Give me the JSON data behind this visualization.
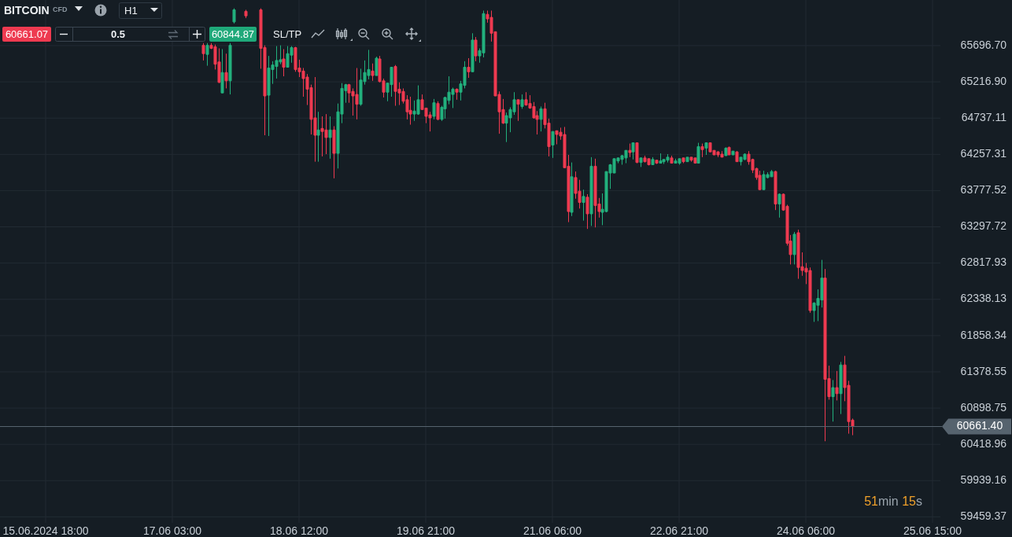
{
  "chart_data": {
    "type": "candlestick",
    "title": "BITCOIN",
    "subtitle": "CFD",
    "annotations": [
      "H1",
      "60661.07",
      "0.5",
      "60844.87",
      "SL/TP",
      "51min 15s"
    ],
    "categories": [
      "15.06.2024 18:00",
      null,
      null,
      null,
      null,
      null,
      null,
      null,
      null,
      null,
      null,
      null,
      null,
      null,
      null,
      null,
      null,
      null,
      null,
      null,
      null,
      null,
      null,
      null,
      null,
      null,
      null,
      null,
      null,
      null,
      null,
      null,
      null,
      "17.06 03:00",
      null,
      null,
      null,
      null,
      null,
      null,
      null,
      null,
      null,
      null,
      null,
      null,
      null,
      null,
      null,
      null,
      null,
      null,
      null,
      null,
      null,
      null,
      null,
      null,
      null,
      null,
      null,
      null,
      null,
      null,
      null,
      null,
      "18.06 12:00",
      null,
      null,
      null,
      null,
      null,
      null,
      null,
      null,
      null,
      null,
      null,
      null,
      null,
      null,
      null,
      null,
      null,
      null,
      null,
      null,
      null,
      null,
      null,
      null,
      null,
      null,
      null,
      null,
      null,
      null,
      null,
      null,
      "19.06 21:00",
      null,
      null,
      null,
      null,
      null,
      null,
      null,
      null,
      null,
      null,
      null,
      null,
      null,
      null,
      null,
      null,
      null,
      null,
      null,
      null,
      null,
      null,
      null,
      null,
      null,
      null,
      null,
      null,
      null,
      null,
      null,
      null,
      "21.06 06:00",
      null,
      null,
      null,
      null,
      null,
      null,
      null,
      null,
      null,
      null,
      null,
      null,
      null,
      null,
      null,
      null,
      null,
      null,
      null,
      null,
      null,
      null,
      null,
      null,
      null,
      null,
      null,
      null,
      null,
      null,
      null,
      null,
      "22.06 21:00",
      null,
      null,
      null,
      null,
      null,
      null,
      null,
      null,
      null,
      null,
      null,
      null,
      null,
      null,
      null,
      null,
      null,
      null,
      null,
      null,
      null,
      null,
      null,
      null,
      null,
      null,
      null,
      null,
      null,
      null,
      null,
      null,
      "24.06 06:00",
      null,
      null,
      null,
      null,
      null,
      null,
      null,
      null,
      null,
      null,
      null,
      null,
      null,
      null,
      null,
      null,
      null,
      null,
      null,
      null,
      null,
      null,
      null,
      null,
      null,
      null,
      null,
      null,
      null,
      null,
      null,
      null,
      "25.06 15:00"
    ],
    "ohlc": [
      null,
      null,
      null,
      null,
      null,
      null,
      null,
      null,
      null,
      null,
      null,
      null,
      null,
      null,
      null,
      null,
      null,
      null,
      null,
      null,
      null,
      null,
      null,
      null,
      null,
      null,
      null,
      null,
      null,
      null,
      null,
      null,
      null,
      null,
      null,
      null,
      null,
      null,
      null,
      null,
      null,
      [
        65700,
        65730,
        65500,
        65590
      ],
      [
        65580,
        65730,
        65430,
        65700
      ],
      [
        65700,
        65730,
        65650,
        65660
      ],
      [
        65680,
        65710,
        65380,
        65450
      ],
      [
        65480,
        65660,
        65200,
        65210
      ],
      [
        65070,
        65650,
        65070,
        65340
      ],
      [
        65340,
        65590,
        65130,
        65230
      ],
      [
        65230,
        65730,
        65050,
        65700
      ],
      [
        66010,
        66190,
        65990,
        66170
      ],
      null,
      null,
      [
        66150,
        66170,
        66060,
        66090
      ],
      null,
      null,
      null,
      [
        66170,
        66190,
        65390,
        65660
      ],
      [
        65670,
        65700,
        64510,
        65030
      ],
      [
        65040,
        65560,
        64500,
        65400
      ],
      [
        65380,
        65490,
        65190,
        65440
      ],
      [
        65420,
        65690,
        65260,
        65500
      ],
      [
        65480,
        65700,
        65450,
        65510
      ],
      [
        65520,
        65650,
        65290,
        65410
      ],
      [
        65410,
        65690,
        65410,
        65590
      ],
      [
        65570,
        65690,
        65470,
        65670
      ],
      [
        65670,
        65680,
        65350,
        65380
      ],
      [
        65400,
        65510,
        65280,
        65350
      ],
      [
        65360,
        65400,
        65020,
        65260
      ],
      [
        65280,
        65320,
        64910,
        65120
      ],
      [
        65140,
        65180,
        64520,
        64720
      ],
      [
        64740,
        65280,
        64160,
        64510
      ],
      [
        64510,
        64820,
        64160,
        64580
      ],
      [
        64600,
        64760,
        64230,
        64560
      ],
      [
        64580,
        64790,
        64260,
        64480
      ],
      [
        64480,
        64760,
        64200,
        64580
      ],
      [
        64580,
        64630,
        63940,
        64270
      ],
      [
        64270,
        64930,
        64070,
        64820
      ],
      [
        64790,
        65200,
        64670,
        65130
      ],
      [
        65100,
        65190,
        64940,
        65180
      ],
      [
        65180,
        65190,
        64940,
        65070
      ],
      [
        65090,
        65130,
        64770,
        65030
      ],
      [
        65050,
        65400,
        64720,
        64920
      ],
      [
        64920,
        65390,
        64900,
        65240
      ],
      [
        65220,
        65500,
        65180,
        65340
      ],
      [
        65300,
        65640,
        65250,
        65380
      ],
      [
        65360,
        65460,
        65230,
        65300
      ],
      [
        65300,
        65550,
        65300,
        65530
      ],
      [
        65520,
        65560,
        65210,
        65220
      ],
      [
        65230,
        65260,
        65010,
        65080
      ],
      [
        65080,
        65200,
        64960,
        65200
      ],
      [
        65180,
        65410,
        65020,
        65410
      ],
      [
        65420,
        65440,
        64900,
        65090
      ],
      [
        65120,
        65210,
        64910,
        65070
      ],
      [
        65090,
        65130,
        64930,
        64960
      ],
      [
        64980,
        65040,
        64720,
        64820
      ],
      [
        64840,
        65020,
        64650,
        64790
      ],
      [
        64790,
        64970,
        64700,
        64830
      ],
      [
        64790,
        65170,
        64780,
        64980
      ],
      [
        64980,
        65050,
        64850,
        64850
      ],
      [
        64870,
        64870,
        64670,
        64760
      ],
      [
        64780,
        64820,
        64560,
        64740
      ],
      [
        64760,
        64990,
        64720,
        64940
      ],
      [
        64930,
        64960,
        64710,
        64720
      ],
      [
        64720,
        64900,
        64700,
        64880
      ],
      [
        64860,
        65020,
        64730,
        65010
      ],
      [
        64970,
        65290,
        64920,
        65080
      ],
      [
        65050,
        65140,
        64870,
        65120
      ],
      [
        65120,
        65130,
        64980,
        65080
      ],
      [
        65080,
        65230,
        64970,
        65190
      ],
      [
        65170,
        65490,
        65130,
        65410
      ],
      [
        65410,
        65530,
        65270,
        65350
      ],
      [
        65350,
        65860,
        65350,
        65770
      ],
      [
        65770,
        65810,
        65490,
        65560
      ],
      [
        65560,
        65660,
        65470,
        65630
      ],
      [
        65600,
        66160,
        65540,
        66120
      ],
      [
        66110,
        66160,
        66000,
        66050
      ],
      [
        66070,
        66160,
        65750,
        65860
      ],
      [
        65880,
        65880,
        65030,
        65030
      ],
      [
        65050,
        65090,
        64530,
        64820
      ],
      [
        64850,
        64990,
        64660,
        64670
      ],
      [
        64670,
        64810,
        64420,
        64770
      ],
      [
        64740,
        64880,
        64550,
        64850
      ],
      [
        64820,
        65080,
        64780,
        64980
      ],
      [
        64980,
        64980,
        64700,
        64920
      ],
      [
        64890,
        65050,
        64860,
        64980
      ],
      [
        64980,
        65080,
        64900,
        64910
      ],
      [
        64930,
        65040,
        64860,
        64870
      ],
      [
        64890,
        64950,
        64730,
        64740
      ],
      [
        64770,
        64830,
        64520,
        64720
      ],
      [
        64720,
        64890,
        64560,
        64860
      ],
      [
        64860,
        64940,
        64600,
        64650
      ],
      [
        64670,
        64730,
        64230,
        64360
      ],
      [
        64380,
        64560,
        64210,
        64560
      ],
      [
        64570,
        64570,
        64390,
        64520
      ],
      [
        64550,
        64610,
        64450,
        64500
      ],
      [
        64520,
        64620,
        64080,
        64080
      ],
      [
        64100,
        64250,
        63360,
        63500
      ],
      [
        63490,
        64150,
        63440,
        63960
      ],
      [
        63950,
        64030,
        63670,
        63740
      ],
      [
        63770,
        63920,
        63540,
        63620
      ],
      [
        63620,
        63790,
        63380,
        63700
      ],
      [
        63690,
        63730,
        63270,
        63470
      ],
      [
        63470,
        64220,
        63310,
        64100
      ],
      [
        64100,
        64200,
        63290,
        63580
      ],
      [
        63600,
        63680,
        63420,
        63500
      ],
      [
        63490,
        63740,
        63320,
        63530
      ],
      [
        63500,
        64030,
        63490,
        64030
      ],
      [
        64010,
        64130,
        63800,
        64120
      ],
      [
        64010,
        64200,
        64010,
        64200
      ],
      [
        64170,
        64210,
        64140,
        64210
      ],
      [
        64190,
        64250,
        64120,
        64240
      ],
      [
        64210,
        64310,
        64140,
        64310
      ],
      [
        64310,
        64400,
        64220,
        64280
      ],
      [
        64290,
        64410,
        64190,
        64410
      ],
      [
        64410,
        64410,
        64140,
        64150
      ],
      [
        64150,
        64210,
        64090,
        64210
      ],
      [
        64210,
        64240,
        64150,
        64160
      ],
      [
        64200,
        64200,
        64110,
        64120
      ],
      [
        64120,
        64220,
        64120,
        64190
      ],
      [
        64180,
        64180,
        64130,
        64140
      ],
      [
        64140,
        64270,
        64140,
        64170
      ],
      [
        64160,
        64190,
        64130,
        64190
      ],
      [
        64180,
        64260,
        64150,
        64220
      ],
      [
        64210,
        64240,
        64140,
        64140
      ],
      [
        64140,
        64200,
        64140,
        64170
      ],
      [
        64140,
        64200,
        64120,
        64200
      ],
      [
        64210,
        64210,
        64140,
        64160
      ],
      [
        64160,
        64220,
        64160,
        64220
      ],
      [
        64220,
        64220,
        64160,
        64180
      ],
      [
        64210,
        64210,
        64140,
        64140
      ],
      [
        64140,
        64410,
        64140,
        64360
      ],
      [
        64360,
        64400,
        64220,
        64320
      ],
      [
        64340,
        64410,
        64250,
        64410
      ],
      [
        64410,
        64410,
        64290,
        64290
      ],
      [
        64310,
        64310,
        64250,
        64250
      ],
      [
        64290,
        64300,
        64220,
        64250
      ],
      [
        64260,
        64300,
        64220,
        64220
      ],
      [
        64240,
        64350,
        64240,
        64340
      ],
      [
        64350,
        64360,
        64250,
        64250
      ],
      [
        64250,
        64300,
        64250,
        64300
      ],
      [
        64290,
        64300,
        64160,
        64160
      ],
      [
        64160,
        64220,
        64110,
        64220
      ],
      [
        64190,
        64270,
        64180,
        64260
      ],
      [
        64260,
        64300,
        64120,
        64160
      ],
      [
        64190,
        64200,
        64010,
        64050
      ],
      [
        64070,
        64080,
        63920,
        63950
      ],
      [
        63980,
        64040,
        63790,
        63790
      ],
      [
        63790,
        64040,
        63790,
        63990
      ],
      [
        63950,
        64020,
        63940,
        63990
      ],
      [
        63960,
        64050,
        63960,
        64030
      ],
      [
        64030,
        64040,
        63520,
        63600
      ],
      [
        63600,
        63740,
        63420,
        63730
      ],
      [
        63730,
        63740,
        63510,
        63520
      ],
      [
        63570,
        63590,
        63050,
        63080
      ],
      [
        63110,
        63190,
        62800,
        62930
      ],
      [
        62930,
        63230,
        62800,
        63200
      ],
      [
        63220,
        63260,
        62610,
        62760
      ],
      [
        62770,
        62960,
        62650,
        62720
      ],
      [
        62750,
        62820,
        62540,
        62700
      ],
      [
        62720,
        62760,
        62160,
        62190
      ],
      [
        62190,
        62300,
        62040,
        62290
      ],
      [
        62260,
        62470,
        62050,
        62350
      ],
      [
        62330,
        62860,
        62230,
        62620
      ],
      [
        62620,
        62740,
        60460,
        61280
      ],
      [
        61290,
        61460,
        61010,
        61050
      ],
      [
        61050,
        61270,
        60720,
        61170
      ],
      [
        61170,
        61390,
        61000,
        61090
      ],
      [
        61090,
        61510,
        60820,
        61470
      ],
      [
        61470,
        61590,
        60990,
        61170
      ],
      [
        61200,
        61260,
        60560,
        60720
      ],
      [
        60740,
        60760,
        60540,
        60660
      ],
      null,
      null,
      null,
      null,
      null,
      null,
      null,
      null,
      null,
      null,
      null,
      null,
      null,
      null,
      null,
      null,
      null,
      null,
      null,
      null,
      null
    ],
    "colors": [
      null,
      null,
      null,
      null,
      null,
      null,
      null,
      null,
      null,
      null,
      null,
      null,
      null,
      null,
      null,
      null,
      null,
      null,
      null,
      null,
      null,
      null,
      null,
      null,
      null,
      null,
      null,
      null,
      null,
      null,
      null,
      null,
      null,
      null,
      null,
      null,
      null,
      null,
      null,
      null,
      null,
      "#ee3a50",
      "#22b07d",
      "#ee3a50",
      "#ee3a50",
      "#ee3a50",
      "#22b07d",
      "#ee3a50",
      "#22b07d",
      "#22b07d",
      null,
      null,
      "#ee3a50",
      null,
      null,
      null,
      "#ee3a50",
      "#ee3a50",
      "#22b07d",
      "#22b07d",
      "#22b07d",
      "#22b07d",
      "#ee3a50",
      "#22b07d",
      "#22b07d",
      "#ee3a50",
      "#ee3a50",
      "#ee3a50",
      "#ee3a50",
      "#ee3a50",
      "#ee3a50",
      "#22b07d",
      "#ee3a50",
      "#ee3a50",
      "#22b07d",
      "#ee3a50",
      "#22b07d",
      "#22b07d",
      "#22b07d",
      "#ee3a50",
      "#ee3a50",
      "#ee3a50",
      "#22b07d",
      "#22b07d",
      "#22b07d",
      "#ee3a50",
      "#22b07d",
      "#ee3a50",
      "#ee3a50",
      "#22b07d",
      "#22b07d",
      "#ee3a50",
      "#ee3a50",
      "#ee3a50",
      "#ee3a50",
      "#ee3a50",
      "#22b07d",
      "#22b07d",
      "#ee3a50",
      "#ee3a50",
      "#ee3a50",
      "#22b07d",
      "#ee3a50",
      "#22b07d",
      "#22b07d",
      "#22b07d",
      "#22b07d",
      "#ee3a50",
      "#22b07d",
      "#22b07d",
      "#ee3a50",
      "#22b07d",
      "#ee3a50",
      "#22b07d",
      "#22b07d",
      "#ee3a50",
      "#ee3a50",
      "#ee3a50",
      "#ee3a50",
      "#ee3a50",
      "#22b07d",
      "#22b07d",
      "#22b07d",
      "#ee3a50",
      "#22b07d",
      "#ee3a50",
      "#ee3a50",
      "#ee3a50",
      "#ee3a50",
      "#22b07d",
      "#ee3a50",
      "#ee3a50",
      "#22b07d",
      "#ee3a50",
      "#ee3a50",
      "#ee3a50",
      "#ee3a50",
      "#22b07d",
      "#ee3a50",
      "#ee3a50",
      "#22b07d",
      "#ee3a50",
      "#22b07d",
      "#ee3a50",
      "#ee3a50",
      "#22b07d",
      "#22b07d",
      "#22b07d",
      "#22b07d",
      "#22b07d",
      "#22b07d",
      "#22b07d",
      "#ee3a50",
      "#22b07d",
      "#ee3a50",
      "#22b07d",
      "#ee3a50",
      "#ee3a50",
      "#22b07d",
      "#ee3a50",
      "#22b07d",
      "#22b07d",
      "#22b07d",
      "#ee3a50",
      "#22b07d",
      "#22b07d",
      "#ee3a50",
      "#22b07d",
      "#ee3a50",
      "#ee3a50",
      "#22b07d",
      "#ee3a50",
      "#22b07d",
      "#ee3a50",
      "#ee3a50",
      "#ee3a50",
      "#ee3a50",
      "#22b07d",
      "#ee3a50",
      "#22b07d",
      "#ee3a50",
      "#22b07d",
      "#22b07d",
      "#ee3a50",
      "#ee3a50",
      "#ee3a50",
      "#ee3a50",
      "#22b07d",
      "#22b07d",
      "#22b07d",
      "#ee3a50",
      "#22b07d",
      "#ee3a50",
      "#ee3a50",
      "#ee3a50",
      "#22b07d",
      "#ee3a50",
      "#ee3a50",
      "#ee3a50",
      "#ee3a50",
      "#22b07d",
      "#22b07d",
      "#22b07d",
      "#ee3a50",
      "#ee3a50",
      "#22b07d",
      "#ee3a50",
      "#22b07d",
      "#ee3a50",
      "#ee3a50",
      "#ee3a50",
      null,
      null,
      null,
      null,
      null,
      null,
      null,
      null,
      null,
      null,
      null,
      null,
      null,
      null,
      null,
      null,
      null,
      null,
      null,
      null,
      null
    ],
    "ylim": [
      59380,
      66300
    ],
    "yticks": [
      {
        "value": 65696.7,
        "label": "65696.70"
      },
      {
        "value": 65216.9,
        "label": "65216.90"
      },
      64737.11,
      64257.31,
      63777.52,
      63297.72,
      62817.93,
      62338.13,
      61858.34,
      61378.55,
      60898.75,
      60418.96,
      59939.16,
      59459.37
    ],
    "grid": true,
    "ref_lines": [
      {
        "axis": "y",
        "value": 60661.4,
        "label": "60661.40",
        "color": "#56636e"
      }
    ]
  }
}
